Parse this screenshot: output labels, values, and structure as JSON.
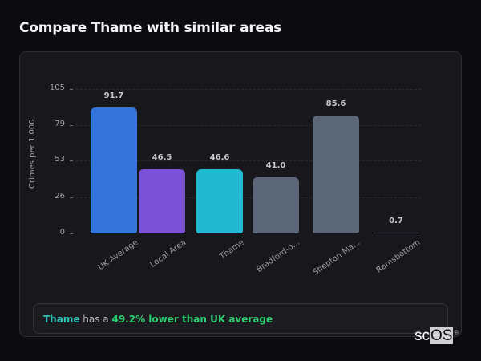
{
  "title": "Compare Thame with similar areas",
  "chart_data": {
    "type": "bar",
    "title": "Compare Thame with similar areas",
    "xlabel": "",
    "ylabel": "Crimes per 1,000",
    "ylim": [
      0,
      105
    ],
    "yticks": [
      "105",
      "79",
      "53",
      "26",
      "0"
    ],
    "grid": true,
    "categories": [
      "UK Average",
      "Local Area",
      "Thame",
      "Bradford-o...",
      "Shepton Ma...",
      "Ramsbottom"
    ],
    "values": [
      91.7,
      46.5,
      46.6,
      41.0,
      85.6,
      0.7
    ],
    "value_labels": [
      "91.7",
      "46.5",
      "46.6",
      "41.0",
      "85.6",
      "0.7"
    ],
    "colors": [
      "#3575d9",
      "#7b52d6",
      "#22b8d1",
      "#5b6677",
      "#5b6677",
      "#5b6677"
    ]
  },
  "summary": {
    "area": "Thame",
    "connector": " has a ",
    "comparison": "49.2% lower than UK average"
  },
  "logo": {
    "prefix": "sc",
    "suffix": "OS",
    "mark": "®"
  }
}
